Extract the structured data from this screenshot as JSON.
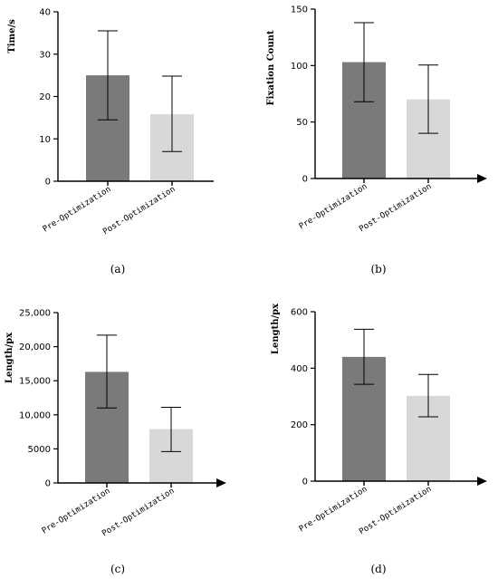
{
  "colors": {
    "bar_pre": "#7a7a7a",
    "bar_post": "#d8d8d8",
    "axis": "#000000"
  },
  "chart_data": [
    {
      "type": "bar",
      "panel_label": "(a)",
      "ylabel": "Time/s",
      "ylim": [
        0,
        40
      ],
      "yticks": [
        "0",
        "10",
        "20",
        "30",
        "40"
      ],
      "ytick_values": [
        0,
        10,
        20,
        30,
        40
      ],
      "arrow": false,
      "categories": [
        "Pre-Optimization",
        "Post-Optimization"
      ],
      "values": [
        25,
        15.8
      ],
      "error_low": [
        14.5,
        7
      ],
      "error_high": [
        35.5,
        24.8
      ]
    },
    {
      "type": "bar",
      "panel_label": "(b)",
      "ylabel": "Fixation Count",
      "ylim": [
        0,
        150
      ],
      "yticks": [
        "0",
        "50",
        "100",
        "150"
      ],
      "ytick_values": [
        0,
        50,
        100,
        150
      ],
      "arrow": true,
      "categories": [
        "Pre-Optimization",
        "Post-Optimization"
      ],
      "values": [
        103,
        70
      ],
      "error_low": [
        68,
        40
      ],
      "error_high": [
        138,
        100.5
      ]
    },
    {
      "type": "bar",
      "panel_label": "(c)",
      "ylabel": "Length/px",
      "ylim": [
        0,
        25000
      ],
      "yticks": [
        "0",
        "5000",
        "10,000",
        "15,000",
        "20,000",
        "25,000"
      ],
      "ytick_values": [
        0,
        5000,
        10000,
        15000,
        20000,
        25000
      ],
      "arrow": true,
      "categories": [
        "Pre-Optimization",
        "Post-Optimization"
      ],
      "values": [
        16300,
        7900
      ],
      "error_low": [
        11000,
        4600
      ],
      "error_high": [
        21700,
        11100
      ]
    },
    {
      "type": "bar",
      "panel_label": "(d)",
      "ylabel": "Length/px",
      "ylim": [
        0,
        600
      ],
      "yticks": [
        "0",
        "200",
        "400",
        "600"
      ],
      "ytick_values": [
        0,
        200,
        400,
        600
      ],
      "arrow": true,
      "categories": [
        "Pre-Optimization",
        "Post-Optimization"
      ],
      "values": [
        440,
        302
      ],
      "error_low": [
        343,
        228
      ],
      "error_high": [
        538,
        378
      ]
    }
  ]
}
